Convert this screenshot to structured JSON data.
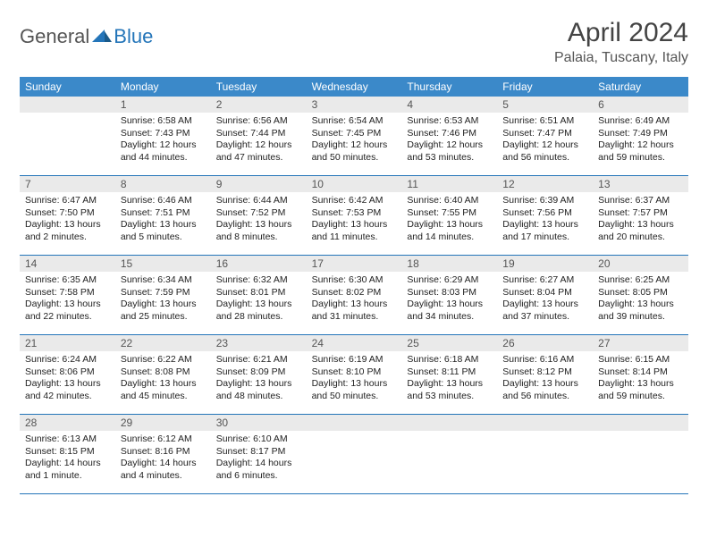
{
  "logo": {
    "text1": "General",
    "text2": "Blue",
    "color1": "#555555",
    "color2": "#2475b9"
  },
  "title": "April 2024",
  "location": "Palaia, Tuscany, Italy",
  "header_bg": "#3b89c9",
  "border_color": "#2475b9",
  "daynum_bg": "#eaeaea",
  "day_headers": [
    "Sunday",
    "Monday",
    "Tuesday",
    "Wednesday",
    "Thursday",
    "Friday",
    "Saturday"
  ],
  "weeks": [
    [
      {
        "empty": true
      },
      {
        "num": "1",
        "sunrise": "6:58 AM",
        "sunset": "7:43 PM",
        "daylight": "12 hours and 44 minutes."
      },
      {
        "num": "2",
        "sunrise": "6:56 AM",
        "sunset": "7:44 PM",
        "daylight": "12 hours and 47 minutes."
      },
      {
        "num": "3",
        "sunrise": "6:54 AM",
        "sunset": "7:45 PM",
        "daylight": "12 hours and 50 minutes."
      },
      {
        "num": "4",
        "sunrise": "6:53 AM",
        "sunset": "7:46 PM",
        "daylight": "12 hours and 53 minutes."
      },
      {
        "num": "5",
        "sunrise": "6:51 AM",
        "sunset": "7:47 PM",
        "daylight": "12 hours and 56 minutes."
      },
      {
        "num": "6",
        "sunrise": "6:49 AM",
        "sunset": "7:49 PM",
        "daylight": "12 hours and 59 minutes."
      }
    ],
    [
      {
        "num": "7",
        "sunrise": "6:47 AM",
        "sunset": "7:50 PM",
        "daylight": "13 hours and 2 minutes."
      },
      {
        "num": "8",
        "sunrise": "6:46 AM",
        "sunset": "7:51 PM",
        "daylight": "13 hours and 5 minutes."
      },
      {
        "num": "9",
        "sunrise": "6:44 AM",
        "sunset": "7:52 PM",
        "daylight": "13 hours and 8 minutes."
      },
      {
        "num": "10",
        "sunrise": "6:42 AM",
        "sunset": "7:53 PM",
        "daylight": "13 hours and 11 minutes."
      },
      {
        "num": "11",
        "sunrise": "6:40 AM",
        "sunset": "7:55 PM",
        "daylight": "13 hours and 14 minutes."
      },
      {
        "num": "12",
        "sunrise": "6:39 AM",
        "sunset": "7:56 PM",
        "daylight": "13 hours and 17 minutes."
      },
      {
        "num": "13",
        "sunrise": "6:37 AM",
        "sunset": "7:57 PM",
        "daylight": "13 hours and 20 minutes."
      }
    ],
    [
      {
        "num": "14",
        "sunrise": "6:35 AM",
        "sunset": "7:58 PM",
        "daylight": "13 hours and 22 minutes."
      },
      {
        "num": "15",
        "sunrise": "6:34 AM",
        "sunset": "7:59 PM",
        "daylight": "13 hours and 25 minutes."
      },
      {
        "num": "16",
        "sunrise": "6:32 AM",
        "sunset": "8:01 PM",
        "daylight": "13 hours and 28 minutes."
      },
      {
        "num": "17",
        "sunrise": "6:30 AM",
        "sunset": "8:02 PM",
        "daylight": "13 hours and 31 minutes."
      },
      {
        "num": "18",
        "sunrise": "6:29 AM",
        "sunset": "8:03 PM",
        "daylight": "13 hours and 34 minutes."
      },
      {
        "num": "19",
        "sunrise": "6:27 AM",
        "sunset": "8:04 PM",
        "daylight": "13 hours and 37 minutes."
      },
      {
        "num": "20",
        "sunrise": "6:25 AM",
        "sunset": "8:05 PM",
        "daylight": "13 hours and 39 minutes."
      }
    ],
    [
      {
        "num": "21",
        "sunrise": "6:24 AM",
        "sunset": "8:06 PM",
        "daylight": "13 hours and 42 minutes."
      },
      {
        "num": "22",
        "sunrise": "6:22 AM",
        "sunset": "8:08 PM",
        "daylight": "13 hours and 45 minutes."
      },
      {
        "num": "23",
        "sunrise": "6:21 AM",
        "sunset": "8:09 PM",
        "daylight": "13 hours and 48 minutes."
      },
      {
        "num": "24",
        "sunrise": "6:19 AM",
        "sunset": "8:10 PM",
        "daylight": "13 hours and 50 minutes."
      },
      {
        "num": "25",
        "sunrise": "6:18 AM",
        "sunset": "8:11 PM",
        "daylight": "13 hours and 53 minutes."
      },
      {
        "num": "26",
        "sunrise": "6:16 AM",
        "sunset": "8:12 PM",
        "daylight": "13 hours and 56 minutes."
      },
      {
        "num": "27",
        "sunrise": "6:15 AM",
        "sunset": "8:14 PM",
        "daylight": "13 hours and 59 minutes."
      }
    ],
    [
      {
        "num": "28",
        "sunrise": "6:13 AM",
        "sunset": "8:15 PM",
        "daylight": "14 hours and 1 minute."
      },
      {
        "num": "29",
        "sunrise": "6:12 AM",
        "sunset": "8:16 PM",
        "daylight": "14 hours and 4 minutes."
      },
      {
        "num": "30",
        "sunrise": "6:10 AM",
        "sunset": "8:17 PM",
        "daylight": "14 hours and 6 minutes."
      },
      {
        "empty": true
      },
      {
        "empty": true
      },
      {
        "empty": true
      },
      {
        "empty": true
      }
    ]
  ]
}
